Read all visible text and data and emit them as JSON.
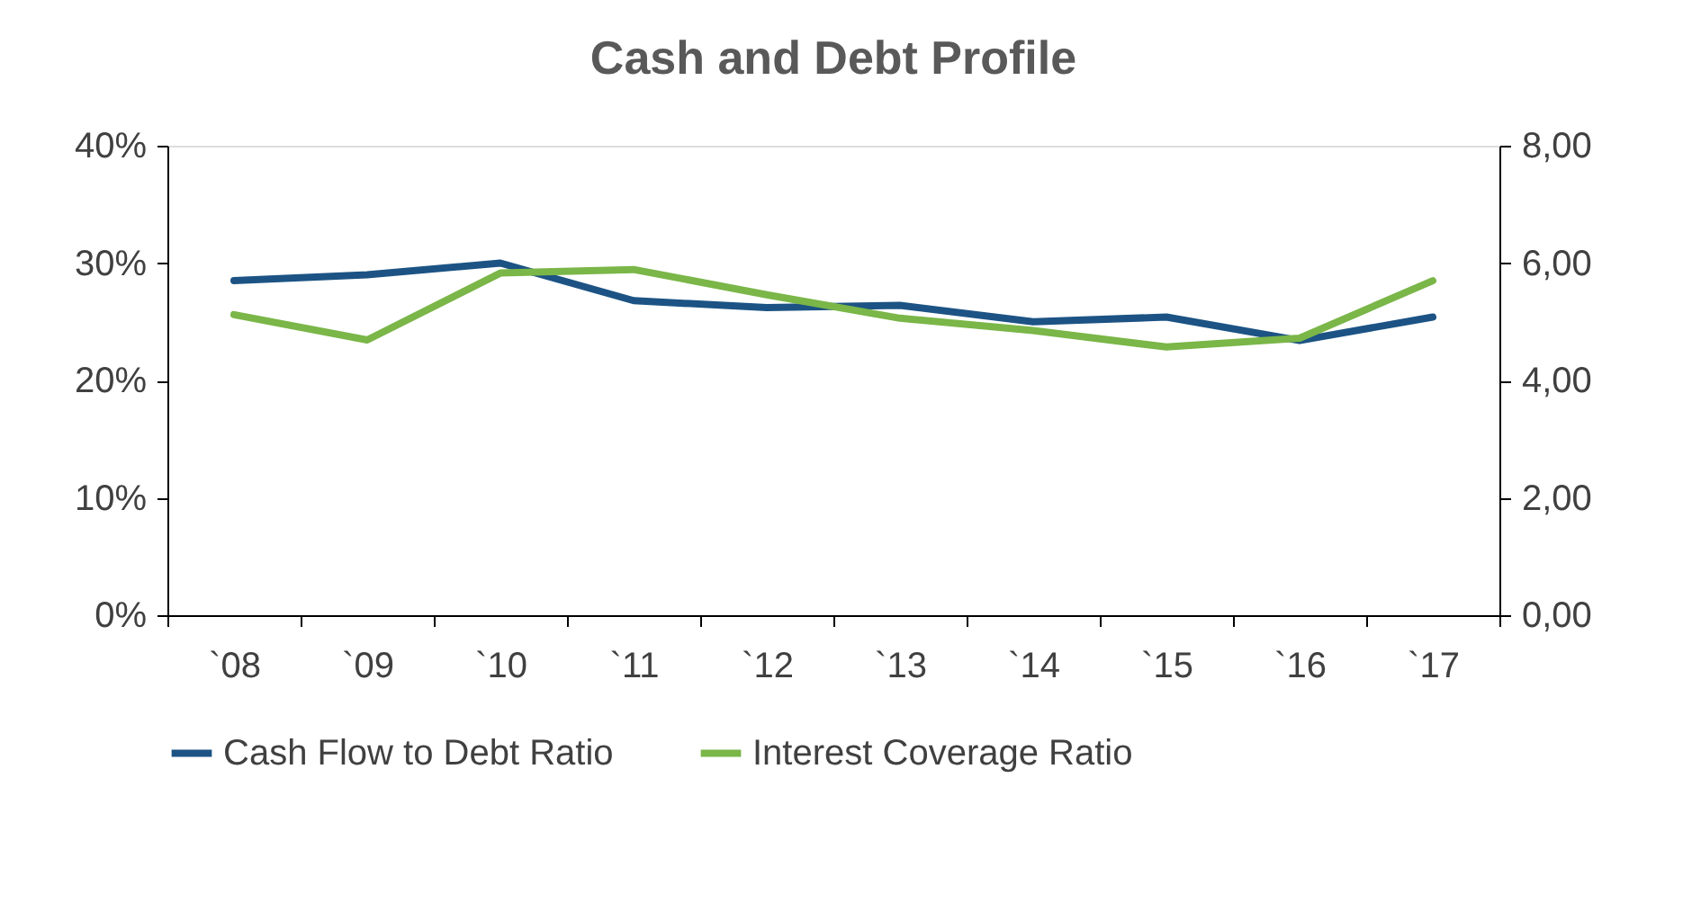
{
  "chart_data": {
    "type": "line",
    "title": "Cash and Debt Profile",
    "categories": [
      "`08",
      "`09",
      "`10",
      "`11",
      "`12",
      "`13",
      "`14",
      "`15",
      "`16",
      "`17"
    ],
    "series": [
      {
        "name": "Cash Flow to Debt Ratio",
        "color": "#1c5384",
        "values": [
          28.5,
          29.0,
          30.0,
          26.8,
          26.2,
          26.4,
          25.0,
          25.4,
          23.4,
          25.4
        ]
      },
      {
        "name": "Interest Coverage Ratio",
        "color": "#7ab648",
        "axis": "y2",
        "values": [
          5.12,
          4.69,
          5.83,
          5.89,
          5.46,
          5.06,
          4.85,
          4.57,
          4.72,
          5.7
        ]
      }
    ],
    "ylim": [
      0,
      40
    ],
    "yticks": [
      {
        "value": 0,
        "label": "0%"
      },
      {
        "value": 10,
        "label": "10%"
      },
      {
        "value": 20,
        "label": "20%"
      },
      {
        "value": 30,
        "label": "30%"
      },
      {
        "value": 40,
        "label": "40%"
      }
    ],
    "y2lim": [
      0,
      8
    ],
    "y2ticks": [
      {
        "value": 0,
        "label": "0,00"
      },
      {
        "value": 2,
        "label": "2,00"
      },
      {
        "value": 4,
        "label": "4,00"
      },
      {
        "value": 6,
        "label": "6,00"
      },
      {
        "value": 8,
        "label": "8,00"
      }
    ],
    "grid": false,
    "legend": "bottom",
    "marker": "none",
    "line_style": "solid"
  }
}
